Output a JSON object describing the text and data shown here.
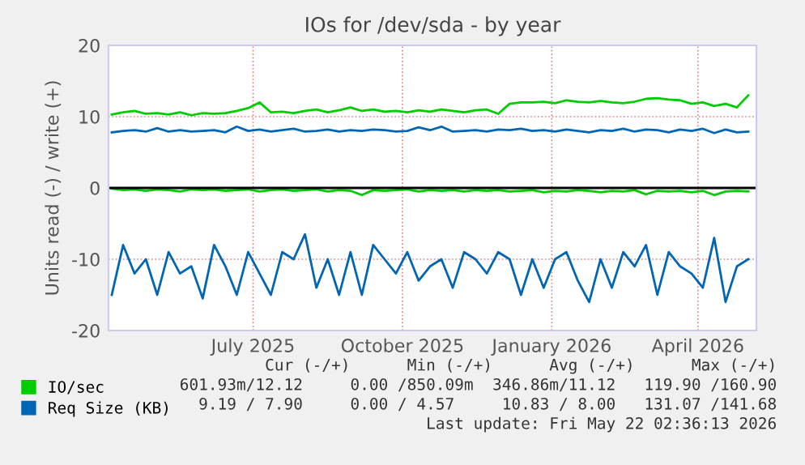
{
  "chart_data": {
    "type": "line",
    "title": "IOs for /dev/sda - by year",
    "ylabel": "Units read (-) / write (+)",
    "x": [
      "2025-04-20",
      "2025-04-27",
      "2025-05-04",
      "2025-05-11",
      "2025-05-18",
      "2025-05-25",
      "2025-06-01",
      "2025-06-08",
      "2025-06-15",
      "2025-06-22",
      "2025-06-29",
      "2025-07-06",
      "2025-07-13",
      "2025-07-20",
      "2025-07-27",
      "2025-08-03",
      "2025-08-10",
      "2025-08-17",
      "2025-08-24",
      "2025-08-31",
      "2025-09-07",
      "2025-09-14",
      "2025-09-21",
      "2025-09-28",
      "2025-10-05",
      "2025-10-12",
      "2025-10-19",
      "2025-10-26",
      "2025-11-02",
      "2025-11-09",
      "2025-11-16",
      "2025-11-23",
      "2025-11-30",
      "2025-12-07",
      "2025-12-14",
      "2025-12-21",
      "2025-12-28",
      "2026-01-04",
      "2026-01-11",
      "2026-01-18",
      "2026-01-25",
      "2026-02-01",
      "2026-02-08",
      "2026-02-15",
      "2026-02-22",
      "2026-03-01",
      "2026-03-08",
      "2026-03-15",
      "2026-03-22",
      "2026-03-29",
      "2026-04-05",
      "2026-04-12",
      "2026-04-19",
      "2026-04-26",
      "2026-05-03",
      "2026-05-10",
      "2026-05-17"
    ],
    "series": [
      {
        "name": "IO/sec",
        "color": "#00cc00",
        "values": [
          10.3,
          10.6,
          10.8,
          10.4,
          10.5,
          10.3,
          10.6,
          10.2,
          10.5,
          10.4,
          10.5,
          10.8,
          11.2,
          12.0,
          10.6,
          10.7,
          10.5,
          10.8,
          11.0,
          10.6,
          10.9,
          11.3,
          10.8,
          11.0,
          10.7,
          10.8,
          10.6,
          10.9,
          10.7,
          11.0,
          10.8,
          10.6,
          10.9,
          11.0,
          10.4,
          11.8,
          12.0,
          12.0,
          12.1,
          11.9,
          12.3,
          12.1,
          12.0,
          12.2,
          12.0,
          11.9,
          12.1,
          12.5,
          12.6,
          12.4,
          12.3,
          11.8,
          12.0,
          11.5,
          11.8,
          11.3,
          13.0
        ]
      },
      {
        "color": "#00cc00",
        "values": [
          -0.1,
          -0.3,
          -0.2,
          -0.4,
          -0.2,
          -0.3,
          -0.5,
          -0.2,
          -0.3,
          -0.2,
          -0.4,
          -0.3,
          -0.2,
          -0.5,
          -0.3,
          -0.2,
          -0.4,
          -0.3,
          -0.2,
          -0.5,
          -0.3,
          -0.4,
          -1.0,
          -0.3,
          -0.4,
          -0.3,
          -0.2,
          -0.5,
          -0.3,
          -0.4,
          -0.3,
          -0.5,
          -0.3,
          -0.4,
          -0.3,
          -0.5,
          -0.4,
          -0.3,
          -0.6,
          -0.4,
          -0.5,
          -0.3,
          -0.4,
          -0.6,
          -0.4,
          -0.5,
          -0.3,
          -0.9,
          -0.4,
          -0.5,
          -0.4,
          -0.6,
          -0.4,
          -1.0,
          -0.5,
          -0.4,
          -0.5
        ]
      },
      {
        "name": "Req Size (KB)",
        "color": "#0066b3",
        "values": [
          7.8,
          8.0,
          8.1,
          7.9,
          8.4,
          7.9,
          8.1,
          7.9,
          8.0,
          8.1,
          7.8,
          8.6,
          8.0,
          8.2,
          7.9,
          8.1,
          8.3,
          7.9,
          8.0,
          8.2,
          7.9,
          8.1,
          8.0,
          8.2,
          8.1,
          7.9,
          8.0,
          8.5,
          8.1,
          8.6,
          7.9,
          8.0,
          8.1,
          7.9,
          8.2,
          8.1,
          8.3,
          8.0,
          8.1,
          7.9,
          8.2,
          8.0,
          7.8,
          8.1,
          8.0,
          8.3,
          7.9,
          8.2,
          8.1,
          7.8,
          8.2,
          8.0,
          8.3,
          7.7,
          8.2,
          7.8,
          7.9
        ]
      },
      {
        "color": "#0066b3",
        "values": [
          -15,
          -8,
          -12,
          -10,
          -15,
          -9,
          -12,
          -11,
          -15.5,
          -8,
          -11,
          -15,
          -9,
          -12,
          -15,
          -9,
          -10,
          -6.5,
          -14,
          -10,
          -15,
          -9,
          -15,
          -8,
          -10,
          -12,
          -9,
          -13,
          -11,
          -10,
          -14,
          -9,
          -10,
          -12,
          -9,
          -10,
          -15,
          -10,
          -14,
          -10,
          -9,
          -13,
          -16,
          -10,
          -14,
          -9,
          -11,
          -8,
          -15,
          -9,
          -11,
          -12,
          -14,
          -7,
          -16,
          -11,
          -10
        ]
      }
    ],
    "xlim": [
      "2025-04-18",
      "2026-05-22"
    ],
    "xticks": [
      {
        "value": "2025-07-16",
        "label": "July 2025"
      },
      {
        "value": "2025-10-16",
        "label": "October 2025"
      },
      {
        "value": "2026-01-16",
        "label": "January 2026"
      },
      {
        "value": "2026-04-16",
        "label": "April 2026"
      }
    ],
    "ylim": [
      -20,
      20
    ],
    "yticks": [
      -20,
      -10,
      0,
      10,
      20
    ],
    "ref_lines": [
      {
        "axis": "y",
        "value": 0,
        "color": "#000000"
      }
    ],
    "grid": true,
    "legend": "bottom",
    "line_style": "solid",
    "marker": "none",
    "annotations": [
      "Cur (-/+)      Min (-/+)      Avg (-/+)      Max (-/+)",
      "601.93m/12.12     0.00 /850.09m  346.86m/11.12   119.90 /160.90",
      "   9.19 / 7.90     0.00 / 4.57     10.83 / 8.00   131.07 /141.68",
      "Last update: Fri May 22 02:36:13 2026"
    ]
  }
}
